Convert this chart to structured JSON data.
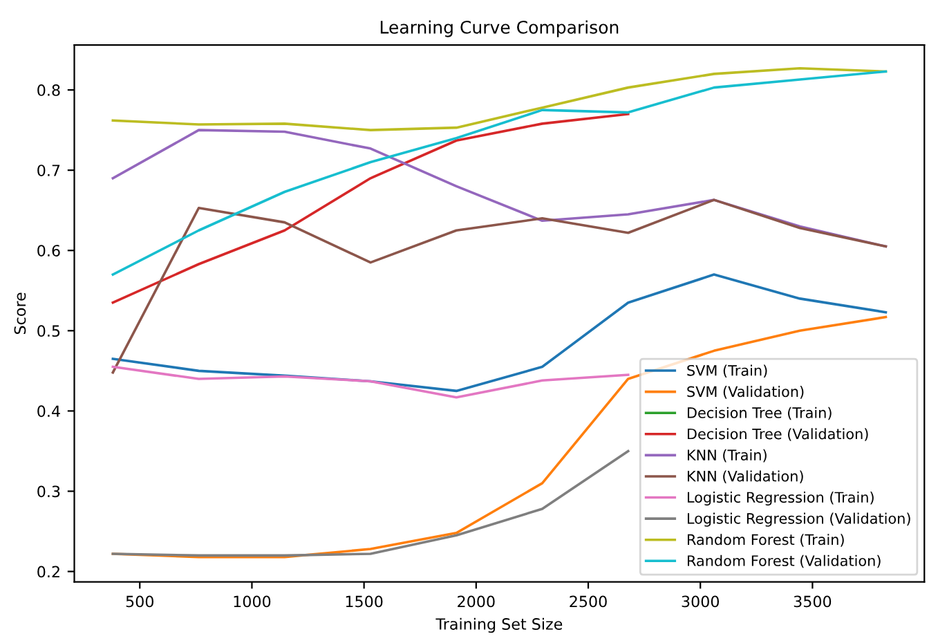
{
  "chart_data": {
    "type": "line",
    "title": "Learning Curve Comparison",
    "xlabel": "Training Set Size",
    "ylabel": "Score",
    "x": [
      380,
      763,
      1146,
      1529,
      1912,
      2295,
      2678,
      3061,
      3444,
      3827
    ],
    "xlim": [
      208,
      3999
    ],
    "xticks": [
      500,
      1000,
      1500,
      2000,
      2500,
      3000,
      3500
    ],
    "ylim": [
      0.187,
      0.856
    ],
    "yticks": [
      0.2,
      0.3,
      0.4,
      0.5,
      0.6,
      0.7,
      0.8
    ],
    "grid": false,
    "legend": "bottom right",
    "marker": "none",
    "line_style": "solid",
    "series": [
      {
        "name": "SVM (Train)",
        "color": "#1f77b4",
        "values": [
          0.465,
          0.45,
          0.444,
          0.437,
          0.425,
          0.455,
          0.535,
          0.57,
          0.54,
          0.523
        ]
      },
      {
        "name": "SVM (Validation)",
        "color": "#ff7f0e",
        "values": [
          0.222,
          0.218,
          0.218,
          0.228,
          0.248,
          0.31,
          0.44,
          0.475,
          0.5,
          0.517
        ]
      },
      {
        "name": "Decision Tree (Train)",
        "color": "#2ca02c",
        "values": [
          null,
          null,
          null,
          null,
          null,
          null,
          null,
          null,
          null,
          null
        ]
      },
      {
        "name": "Decision Tree (Validation)",
        "color": "#d62728",
        "values": [
          0.535,
          0.583,
          0.625,
          0.69,
          0.737,
          0.758,
          0.77,
          null,
          null,
          null
        ]
      },
      {
        "name": "KNN (Train)",
        "color": "#9467bd",
        "values": [
          0.69,
          0.75,
          0.748,
          0.727,
          0.68,
          0.637,
          0.645,
          0.663,
          0.63,
          0.605
        ]
      },
      {
        "name": "KNN (Validation)",
        "color": "#8c564b",
        "values": [
          0.448,
          0.653,
          0.635,
          0.585,
          0.625,
          0.64,
          0.622,
          0.663,
          0.628,
          0.605
        ]
      },
      {
        "name": "Logistic Regression (Train)",
        "color": "#e377c2",
        "values": [
          0.455,
          0.44,
          0.443,
          0.437,
          0.417,
          0.438,
          0.445,
          null,
          null,
          null
        ]
      },
      {
        "name": "Logistic Regression (Validation)",
        "color": "#7f7f7f",
        "values": [
          0.222,
          0.22,
          0.22,
          0.222,
          0.245,
          0.278,
          0.35,
          null,
          null,
          null
        ]
      },
      {
        "name": "Random Forest (Train)",
        "color": "#bcbd22",
        "values": [
          0.762,
          0.757,
          0.758,
          0.75,
          0.753,
          0.778,
          0.803,
          0.82,
          0.827,
          0.823
        ]
      },
      {
        "name": "Random Forest (Validation)",
        "color": "#17becf",
        "values": [
          0.57,
          0.625,
          0.673,
          0.71,
          0.74,
          0.775,
          0.772,
          0.803,
          0.813,
          0.823
        ]
      }
    ]
  }
}
